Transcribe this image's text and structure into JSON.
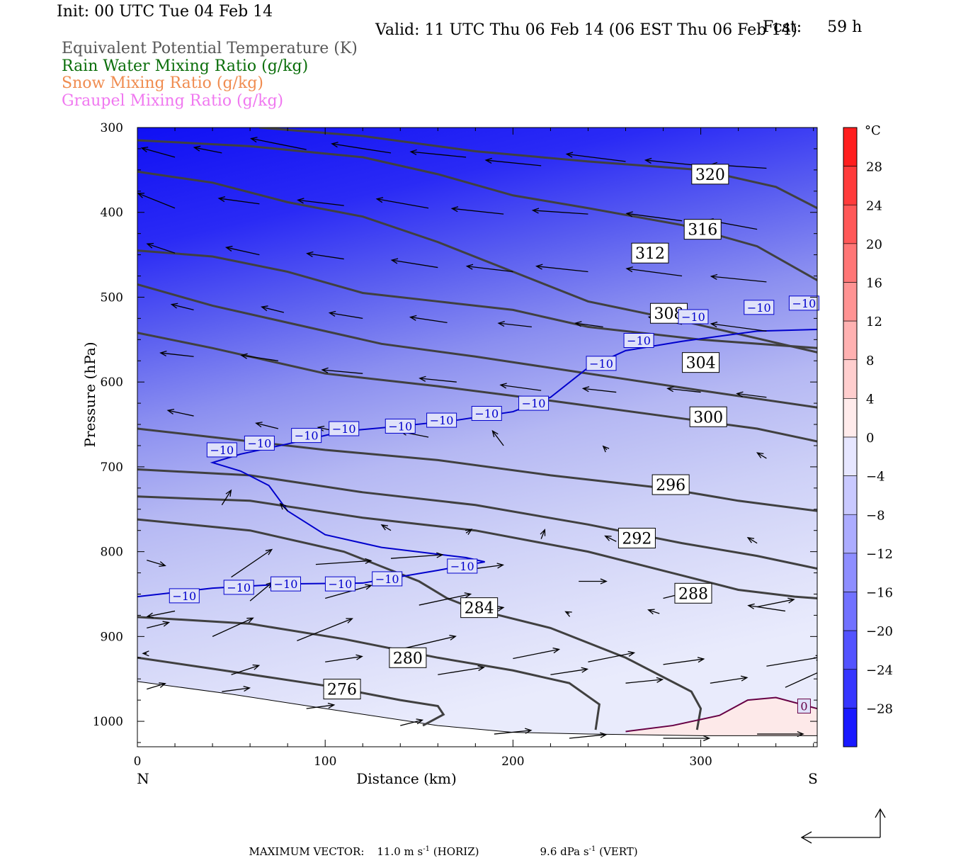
{
  "header": {
    "init": "Init: 00 UTC Tue 04 Feb 14",
    "fcst_label": "Fcst:",
    "fcst_value": "59 h",
    "valid": "Valid: 11 UTC Thu 06 Feb 14 (06 EST Thu 06 Feb 14)"
  },
  "legend": [
    {
      "label": "Equivalent Potential Temperature (K)",
      "color": "#555555"
    },
    {
      "label": "Rain Water Mixing Ratio (g/kg)",
      "color": "#0a6e0a"
    },
    {
      "label": "Snow Mixing Ratio (g/kg)",
      "color": "#f08c50"
    },
    {
      "label": "Graupel Mixing Ratio (g/kg)",
      "color": "#f078f0"
    }
  ],
  "chart_data": {
    "type": "cross-section",
    "xlabel": "Distance (km)",
    "ylabel": "Pressure (hPa)",
    "x_end_labels": {
      "left": "N",
      "right": "S"
    },
    "xlim": [
      0,
      362
    ],
    "ylim": [
      1030,
      300
    ],
    "y_scale": "linear",
    "x_ticks": [
      0,
      100,
      200,
      300
    ],
    "y_ticks": [
      300,
      400,
      500,
      600,
      700,
      800,
      900,
      1000
    ],
    "colorbar": {
      "unit": "°C",
      "ticks": [
        "28",
        "24",
        "20",
        "16",
        "12",
        "8",
        "4",
        "0",
        "−4",
        "−8",
        "−12",
        "−16",
        "−20",
        "−24",
        "−28"
      ],
      "range": [
        -32,
        32
      ],
      "step": 4
    },
    "theta_e_contours": [
      {
        "label": "276",
        "label_at": [
          109,
          962
        ],
        "points": [
          [
            0,
            925
          ],
          [
            40,
            938
          ],
          [
            100,
            958
          ],
          [
            140,
            975
          ],
          [
            160,
            982
          ],
          [
            163,
            992
          ],
          [
            152,
            1005
          ]
        ]
      },
      {
        "label": "280",
        "label_at": [
          144,
          925
        ],
        "points": [
          [
            0,
            877
          ],
          [
            60,
            885
          ],
          [
            110,
            903
          ],
          [
            160,
            925
          ],
          [
            200,
            940
          ],
          [
            230,
            955
          ],
          [
            246,
            980
          ],
          [
            244,
            1010
          ]
        ]
      },
      {
        "label": "284",
        "label_at": [
          182,
          866
        ],
        "points": [
          [
            0,
            762
          ],
          [
            60,
            775
          ],
          [
            110,
            800
          ],
          [
            150,
            835
          ],
          [
            165,
            855
          ],
          [
            180,
            868
          ],
          [
            220,
            890
          ],
          [
            260,
            925
          ],
          [
            295,
            965
          ],
          [
            300,
            985
          ],
          [
            298,
            1010
          ]
        ]
      },
      {
        "label": "288",
        "label_at": [
          296,
          849
        ],
        "points": [
          [
            0,
            735
          ],
          [
            60,
            740
          ],
          [
            120,
            760
          ],
          [
            180,
            775
          ],
          [
            240,
            800
          ],
          [
            290,
            828
          ],
          [
            320,
            845
          ],
          [
            350,
            853
          ],
          [
            362,
            855
          ]
        ]
      },
      {
        "label": "292",
        "label_at": [
          266,
          784
        ],
        "points": [
          [
            0,
            703
          ],
          [
            60,
            710
          ],
          [
            120,
            730
          ],
          [
            180,
            745
          ],
          [
            240,
            768
          ],
          [
            290,
            790
          ],
          [
            330,
            805
          ],
          [
            362,
            820
          ]
        ]
      },
      {
        "label": "296",
        "label_at": [
          284,
          721
        ],
        "points": [
          [
            0,
            655
          ],
          [
            40,
            665
          ],
          [
            100,
            680
          ],
          [
            160,
            692
          ],
          [
            220,
            710
          ],
          [
            280,
            725
          ],
          [
            320,
            740
          ],
          [
            362,
            752
          ]
        ]
      },
      {
        "label": "300",
        "label_at": [
          304,
          641
        ],
        "points": [
          [
            0,
            542
          ],
          [
            40,
            560
          ],
          [
            100,
            590
          ],
          [
            160,
            605
          ],
          [
            220,
            622
          ],
          [
            280,
            640
          ],
          [
            330,
            655
          ],
          [
            362,
            670
          ]
        ]
      },
      {
        "label": "304",
        "label_at": [
          300,
          577
        ],
        "points": [
          [
            0,
            485
          ],
          [
            40,
            510
          ],
          [
            80,
            530
          ],
          [
            130,
            555
          ],
          [
            180,
            570
          ],
          [
            240,
            590
          ],
          [
            300,
            610
          ],
          [
            362,
            630
          ]
        ]
      },
      {
        "label": "308",
        "label_at": [
          283,
          519
        ],
        "points": [
          [
            0,
            445
          ],
          [
            40,
            452
          ],
          [
            80,
            470
          ],
          [
            120,
            495
          ],
          [
            160,
            505
          ],
          [
            200,
            515
          ],
          [
            240,
            535
          ],
          [
            300,
            550
          ],
          [
            362,
            560
          ]
        ]
      },
      {
        "label": "312",
        "label_at": [
          273,
          448
        ],
        "points": [
          [
            0,
            352
          ],
          [
            40,
            365
          ],
          [
            80,
            388
          ],
          [
            120,
            405
          ],
          [
            160,
            435
          ],
          [
            200,
            470
          ],
          [
            240,
            505
          ],
          [
            290,
            528
          ],
          [
            362,
            565
          ]
        ]
      },
      {
        "label": "316",
        "label_at": [
          301,
          420
        ],
        "points": [
          [
            0,
            315
          ],
          [
            60,
            322
          ],
          [
            120,
            335
          ],
          [
            160,
            355
          ],
          [
            200,
            380
          ],
          [
            240,
            395
          ],
          [
            290,
            415
          ],
          [
            330,
            440
          ],
          [
            362,
            480
          ]
        ]
      },
      {
        "label": "320",
        "label_at": [
          305,
          355
        ],
        "points": [
          [
            65,
            300
          ],
          [
            120,
            310
          ],
          [
            180,
            328
          ],
          [
            240,
            340
          ],
          [
            300,
            350
          ],
          [
            340,
            370
          ],
          [
            362,
            395
          ]
        ]
      }
    ],
    "temperature_contours": [
      {
        "label": "−10",
        "color": "#0000cc",
        "label_positions": [
          [
            25,
            852
          ],
          [
            54,
            842
          ],
          [
            79,
            838
          ],
          [
            108,
            838
          ],
          [
            133,
            832
          ],
          [
            173,
            817
          ],
          [
            45,
            680
          ],
          [
            65,
            672
          ],
          [
            90,
            663
          ],
          [
            110,
            655
          ],
          [
            140,
            652
          ],
          [
            162,
            645
          ],
          [
            186,
            637
          ],
          [
            211,
            625
          ],
          [
            247,
            578
          ],
          [
            267,
            551
          ],
          [
            296,
            523
          ],
          [
            331,
            512
          ],
          [
            355,
            507
          ]
        ],
        "points": [
          [
            0,
            853
          ],
          [
            40,
            843
          ],
          [
            80,
            838
          ],
          [
            120,
            837
          ],
          [
            160,
            822
          ],
          [
            185,
            812
          ],
          [
            175,
            807
          ],
          [
            130,
            795
          ],
          [
            100,
            780
          ],
          [
            80,
            752
          ],
          [
            70,
            722
          ],
          [
            55,
            705
          ],
          [
            40,
            695
          ],
          [
            55,
            685
          ],
          [
            80,
            673
          ],
          [
            110,
            658
          ],
          [
            140,
            652
          ],
          [
            170,
            645
          ],
          [
            200,
            635
          ],
          [
            220,
            618
          ],
          [
            240,
            583
          ],
          [
            260,
            563
          ],
          [
            290,
            552
          ],
          [
            330,
            540
          ],
          [
            362,
            538
          ]
        ]
      },
      {
        "label": "0",
        "color": "#660044",
        "label_positions": [
          [
            355,
            982
          ]
        ],
        "points": [
          [
            260,
            1012
          ],
          [
            285,
            1005
          ],
          [
            310,
            993
          ],
          [
            325,
            975
          ],
          [
            340,
            972
          ],
          [
            362,
            985
          ]
        ]
      }
    ],
    "wind_vectors": [
      [
        20,
        335,
        -18,
        -5
      ],
      [
        45,
        330,
        -15,
        -3
      ],
      [
        90,
        326,
        -30,
        -6
      ],
      [
        135,
        330,
        -32,
        -5
      ],
      [
        175,
        335,
        -30,
        -3
      ],
      [
        215,
        345,
        -30,
        -3
      ],
      [
        260,
        340,
        -32,
        -4
      ],
      [
        300,
        345,
        -30,
        -3
      ],
      [
        335,
        348,
        -30,
        -2
      ],
      [
        20,
        395,
        -20,
        -8
      ],
      [
        65,
        390,
        -22,
        -3
      ],
      [
        110,
        392,
        -25,
        -3
      ],
      [
        155,
        395,
        -28,
        -5
      ],
      [
        195,
        402,
        -28,
        -3
      ],
      [
        240,
        402,
        -30,
        -2
      ],
      [
        290,
        410,
        -30,
        -4
      ],
      [
        330,
        420,
        -27,
        -5
      ],
      [
        20,
        448,
        -15,
        -5
      ],
      [
        65,
        450,
        -18,
        -4
      ],
      [
        110,
        455,
        -20,
        -3
      ],
      [
        160,
        465,
        -25,
        -4
      ],
      [
        200,
        470,
        -25,
        -3
      ],
      [
        240,
        470,
        -28,
        -3
      ],
      [
        290,
        475,
        -30,
        -4
      ],
      [
        335,
        482,
        -30,
        -3
      ],
      [
        30,
        515,
        -12,
        -3
      ],
      [
        78,
        518,
        -12,
        -3
      ],
      [
        120,
        525,
        -18,
        -3
      ],
      [
        165,
        530,
        -20,
        -3
      ],
      [
        210,
        535,
        -18,
        -2
      ],
      [
        248,
        535,
        -15,
        -2
      ],
      [
        290,
        532,
        -18,
        -4
      ],
      [
        335,
        540,
        -30,
        -4
      ],
      [
        30,
        570,
        -18,
        -2
      ],
      [
        75,
        575,
        -20,
        -3
      ],
      [
        120,
        590,
        -22,
        -2
      ],
      [
        170,
        600,
        -20,
        -2
      ],
      [
        215,
        610,
        -22,
        -3
      ],
      [
        255,
        612,
        -18,
        -2
      ],
      [
        300,
        612,
        -18,
        -2
      ],
      [
        335,
        618,
        -16,
        -2
      ],
      [
        30,
        640,
        -14,
        -3
      ],
      [
        75,
        655,
        -12,
        -3
      ],
      [
        110,
        660,
        -14,
        -3
      ],
      [
        155,
        665,
        -15,
        -3
      ],
      [
        195,
        675,
        -6,
        -8
      ],
      [
        250,
        680,
        -2,
        -2
      ],
      [
        335,
        690,
        -5,
        -3
      ],
      [
        45,
        745,
        5,
        -8
      ],
      [
        80,
        752,
        -4,
        -4
      ],
      [
        135,
        775,
        -5,
        -3
      ],
      [
        175,
        778,
        3,
        -2
      ],
      [
        215,
        785,
        2,
        -5
      ],
      [
        255,
        788,
        -6,
        -3
      ],
      [
        330,
        790,
        -5,
        -3
      ],
      [
        5,
        810,
        10,
        3
      ],
      [
        50,
        830,
        22,
        -15
      ],
      [
        95,
        815,
        30,
        -2
      ],
      [
        135,
        808,
        28,
        -2
      ],
      [
        180,
        820,
        15,
        -2
      ],
      [
        235,
        835,
        15,
        0
      ],
      [
        280,
        855,
        16,
        -4
      ],
      [
        330,
        865,
        20,
        -4
      ],
      [
        20,
        870,
        -15,
        3
      ],
      [
        60,
        858,
        12,
        -10
      ],
      [
        100,
        855,
        25,
        -7
      ],
      [
        150,
        863,
        28,
        -6
      ],
      [
        190,
        868,
        5,
        -1
      ],
      [
        230,
        873,
        -2,
        -1
      ],
      [
        278,
        873,
        -6,
        -2
      ],
      [
        345,
        870,
        -20,
        -3
      ],
      [
        5,
        890,
        12,
        -3
      ],
      [
        40,
        900,
        22,
        -10
      ],
      [
        85,
        905,
        30,
        -12
      ],
      [
        140,
        915,
        30,
        -7
      ],
      [
        200,
        926,
        25,
        -5
      ],
      [
        240,
        930,
        25,
        -5
      ],
      [
        280,
        933,
        22,
        -3
      ],
      [
        335,
        935,
        30,
        -5
      ],
      [
        5,
        920,
        -2,
        0
      ],
      [
        50,
        945,
        15,
        -5
      ],
      [
        100,
        930,
        20,
        -3
      ],
      [
        160,
        945,
        25,
        -4
      ],
      [
        220,
        945,
        20,
        -3
      ],
      [
        260,
        955,
        20,
        -2
      ],
      [
        305,
        955,
        20,
        -3
      ],
      [
        345,
        960,
        22,
        -10
      ],
      [
        5,
        962,
        10,
        -3
      ],
      [
        45,
        965,
        15,
        -2
      ],
      [
        90,
        985,
        15,
        -2
      ],
      [
        140,
        1005,
        12,
        -3
      ],
      [
        190,
        1015,
        20,
        -2
      ],
      [
        230,
        1020,
        20,
        -2
      ],
      [
        280,
        1020,
        25,
        0
      ],
      [
        330,
        1015,
        25,
        0
      ]
    ],
    "max_vector": {
      "label": "MAXIMUM VECTOR:",
      "horiz_value": "11.0 m s",
      "horiz_exp": "-1",
      "horiz_unit": "(HORIZ)",
      "vert_value": "9.6 dPa s",
      "vert_exp": "-1",
      "vert_unit": "(VERT)"
    }
  }
}
